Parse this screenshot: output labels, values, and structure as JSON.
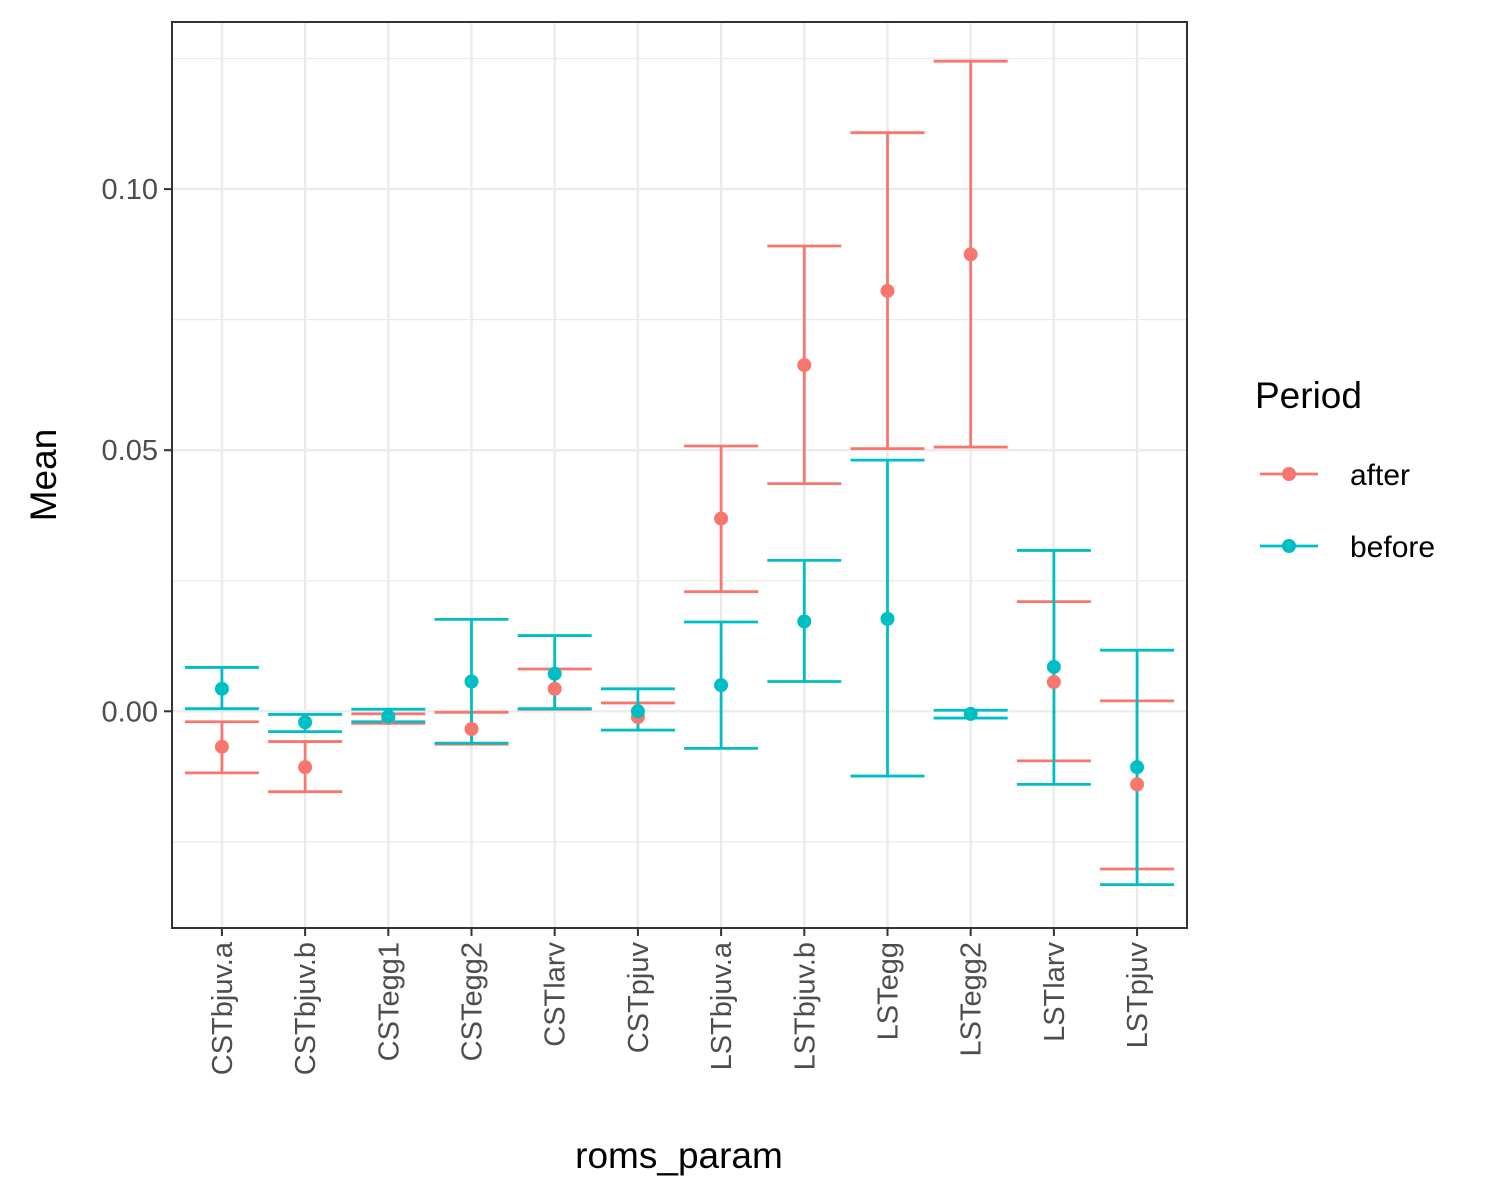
{
  "chart_data": {
    "type": "scatter",
    "subtype": "point-with-errorbars",
    "title": "",
    "xlabel": "roms_param",
    "ylabel": "Mean",
    "categories": [
      "CSTbjuv.a",
      "CSTbjuv.b",
      "CSTegg1",
      "CSTegg2",
      "CSTlarv",
      "CSTpjuv",
      "LSTbjuv.a",
      "LSTbjuv.b",
      "LSTegg",
      "LSTegg2",
      "LSTlarv",
      "LSTpjuv"
    ],
    "ylim": [
      -0.0415,
      0.132
    ],
    "y_ticks": [
      0.0,
      0.05,
      0.1
    ],
    "y_tick_labels": [
      "0.00",
      "0.05",
      "0.10"
    ],
    "grid": true,
    "legend": {
      "title": "Period",
      "position": "right"
    },
    "series": [
      {
        "name": "after",
        "color": "#F8766D",
        "mean": [
          -0.0068,
          -0.0107,
          -0.0013,
          -0.0034,
          0.0043,
          -0.0011,
          0.0369,
          0.0663,
          0.0805,
          0.0875,
          0.0056,
          -0.014
        ],
        "lower": [
          -0.0118,
          -0.0154,
          -0.0023,
          -0.0063,
          0.0004,
          -0.0036,
          0.0229,
          0.0436,
          0.0503,
          0.0506,
          -0.0095,
          -0.0302
        ],
        "upper": [
          -0.002,
          -0.0058,
          -0.0005,
          -0.0002,
          0.0081,
          0.0016,
          0.0508,
          0.0891,
          0.1108,
          0.1245,
          0.021,
          0.002
        ]
      },
      {
        "name": "before",
        "color": "#00BFC4",
        "mean": [
          0.0043,
          -0.0021,
          -0.001,
          0.0057,
          0.0072,
          0.0,
          0.005,
          0.0172,
          0.0177,
          -0.0005,
          0.0085,
          -0.0107
        ],
        "lower": [
          0.0005,
          -0.0039,
          -0.002,
          -0.0061,
          0.0005,
          -0.0036,
          -0.0071,
          0.0057,
          -0.0124,
          -0.0013,
          -0.014,
          -0.0332
        ],
        "upper": [
          0.0084,
          -0.0006,
          0.0004,
          0.0176,
          0.0145,
          0.0043,
          0.0171,
          0.0289,
          0.0481,
          0.0002,
          0.0308,
          0.0117
        ]
      }
    ]
  }
}
